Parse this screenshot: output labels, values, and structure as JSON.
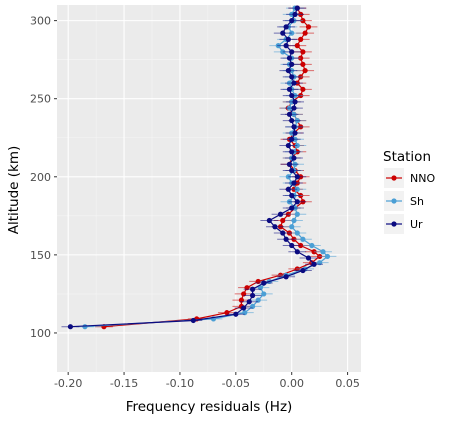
{
  "chart_data": {
    "type": "line",
    "orientation": "vertical-profile",
    "xlabel": "Frequency residuals (Hz)",
    "ylabel": "Altitude (km)",
    "xlim": [
      -0.21,
      0.062
    ],
    "ylim": [
      75,
      310
    ],
    "xticks": [
      -0.2,
      -0.15,
      -0.1,
      -0.05,
      0.0,
      0.05
    ],
    "xtick_labels": [
      "-0.20",
      "-0.15",
      "-0.10",
      "-0.05",
      "0.00",
      "0.05"
    ],
    "yticks": [
      100,
      150,
      200,
      250,
      300
    ],
    "ytick_labels": [
      "100",
      "150",
      "200",
      "250",
      "300"
    ],
    "grid": true,
    "legend_title": "Station",
    "legend_position": "right",
    "series": [
      {
        "name": "NNO",
        "color": "#cc0000",
        "points": [
          [
            -0.168,
            104
          ],
          [
            -0.085,
            109
          ],
          [
            -0.058,
            113
          ],
          [
            -0.045,
            117
          ],
          [
            -0.045,
            121
          ],
          [
            -0.043,
            125
          ],
          [
            -0.04,
            129
          ],
          [
            -0.03,
            133
          ],
          [
            -0.01,
            137
          ],
          [
            0.005,
            141
          ],
          [
            0.018,
            145
          ],
          [
            0.025,
            149
          ],
          [
            0.02,
            152
          ],
          [
            0.008,
            156
          ],
          [
            0.002,
            160
          ],
          [
            -0.002,
            164
          ],
          [
            -0.01,
            168
          ],
          [
            -0.008,
            172
          ],
          [
            -0.003,
            176
          ],
          [
            0.003,
            180
          ],
          [
            0.01,
            184
          ],
          [
            0.008,
            188
          ],
          [
            0.002,
            192
          ],
          [
            0.005,
            196
          ],
          [
            0.008,
            200
          ],
          [
            0.003,
            204
          ],
          [
            -0.002,
            208
          ],
          [
            0.0,
            212
          ],
          [
            0.005,
            216
          ],
          [
            0.003,
            220
          ],
          [
            -0.002,
            224
          ],
          [
            0.002,
            228
          ],
          [
            0.008,
            232
          ],
          [
            0.005,
            236
          ],
          [
            0.002,
            240
          ],
          [
            -0.003,
            244
          ],
          [
            0.0,
            248
          ],
          [
            0.008,
            252
          ],
          [
            0.01,
            256
          ],
          [
            0.005,
            260
          ],
          [
            0.008,
            264
          ],
          [
            0.012,
            268
          ],
          [
            0.01,
            272
          ],
          [
            0.008,
            276
          ],
          [
            0.01,
            280
          ],
          [
            0.005,
            284
          ],
          [
            0.008,
            288
          ],
          [
            0.012,
            292
          ],
          [
            0.015,
            296
          ],
          [
            0.01,
            300
          ],
          [
            0.008,
            304
          ],
          [
            0.005,
            308
          ]
        ]
      },
      {
        "name": "Sh",
        "color": "#4b9fd5",
        "points": [
          [
            -0.185,
            104
          ],
          [
            -0.07,
            109
          ],
          [
            -0.042,
            113
          ],
          [
            -0.035,
            117
          ],
          [
            -0.03,
            121
          ],
          [
            -0.025,
            125
          ],
          [
            -0.028,
            129
          ],
          [
            -0.02,
            133
          ],
          [
            -0.005,
            137
          ],
          [
            0.012,
            141
          ],
          [
            0.025,
            145
          ],
          [
            0.032,
            149
          ],
          [
            0.028,
            152
          ],
          [
            0.018,
            156
          ],
          [
            0.01,
            160
          ],
          [
            0.005,
            164
          ],
          [
            0.0,
            168
          ],
          [
            0.002,
            172
          ],
          [
            0.005,
            176
          ],
          [
            0.003,
            180
          ],
          [
            -0.002,
            184
          ],
          [
            0.002,
            188
          ],
          [
            0.005,
            192
          ],
          [
            0.0,
            196
          ],
          [
            -0.003,
            200
          ],
          [
            0.002,
            204
          ],
          [
            0.003,
            208
          ],
          [
            0.0,
            212
          ],
          [
            0.002,
            216
          ],
          [
            0.005,
            220
          ],
          [
            0.003,
            224
          ],
          [
            0.0,
            228
          ],
          [
            0.003,
            232
          ],
          [
            0.005,
            236
          ],
          [
            0.002,
            240
          ],
          [
            -0.002,
            244
          ],
          [
            0.0,
            248
          ],
          [
            0.003,
            252
          ],
          [
            0.0,
            256
          ],
          [
            -0.002,
            260
          ],
          [
            0.002,
            264
          ],
          [
            0.0,
            268
          ],
          [
            -0.002,
            272
          ],
          [
            0.0,
            276
          ],
          [
            -0.008,
            280
          ],
          [
            -0.012,
            284
          ],
          [
            -0.005,
            288
          ],
          [
            0.0,
            292
          ],
          [
            -0.003,
            296
          ],
          [
            0.002,
            300
          ],
          [
            0.0,
            304
          ],
          [
            0.003,
            308
          ]
        ]
      },
      {
        "name": "Ur",
        "color": "#0b0b80",
        "points": [
          [
            -0.198,
            104
          ],
          [
            -0.088,
            108
          ],
          [
            -0.05,
            112
          ],
          [
            -0.043,
            116
          ],
          [
            -0.038,
            120
          ],
          [
            -0.035,
            124
          ],
          [
            -0.035,
            128
          ],
          [
            -0.025,
            132
          ],
          [
            -0.005,
            136
          ],
          [
            0.01,
            140
          ],
          [
            0.02,
            144
          ],
          [
            0.015,
            148
          ],
          [
            0.005,
            152
          ],
          [
            0.0,
            156
          ],
          [
            -0.005,
            160
          ],
          [
            -0.008,
            164
          ],
          [
            -0.015,
            168
          ],
          [
            -0.02,
            172
          ],
          [
            -0.01,
            176
          ],
          [
            0.0,
            180
          ],
          [
            0.005,
            184
          ],
          [
            0.0,
            188
          ],
          [
            -0.003,
            192
          ],
          [
            0.002,
            196
          ],
          [
            0.005,
            200
          ],
          [
            0.0,
            204
          ],
          [
            -0.002,
            208
          ],
          [
            0.002,
            212
          ],
          [
            0.0,
            216
          ],
          [
            -0.003,
            220
          ],
          [
            0.0,
            224
          ],
          [
            0.003,
            228
          ],
          [
            0.002,
            232
          ],
          [
            0.0,
            236
          ],
          [
            -0.002,
            240
          ],
          [
            0.002,
            244
          ],
          [
            0.003,
            248
          ],
          [
            0.0,
            252
          ],
          [
            -0.002,
            256
          ],
          [
            0.002,
            260
          ],
          [
            0.0,
            264
          ],
          [
            -0.003,
            268
          ],
          [
            0.0,
            272
          ],
          [
            -0.002,
            276
          ],
          [
            0.0,
            280
          ],
          [
            -0.005,
            284
          ],
          [
            -0.003,
            288
          ],
          [
            -0.008,
            292
          ],
          [
            -0.005,
            296
          ],
          [
            0.0,
            300
          ],
          [
            0.003,
            304
          ],
          [
            0.005,
            308
          ]
        ]
      }
    ]
  }
}
